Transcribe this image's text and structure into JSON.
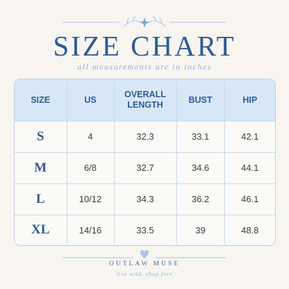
{
  "header": {
    "title": "SIZE CHART",
    "subtitle": "all measurements are in inches"
  },
  "table": {
    "columns": [
      "SIZE",
      "US",
      "OVERALL LENGTH",
      "BUST",
      "HIP"
    ],
    "rows": [
      [
        "S",
        "4",
        "32.3",
        "33.1",
        "42.1"
      ],
      [
        "M",
        "6/8",
        "32.7",
        "34.6",
        "44.1"
      ],
      [
        "L",
        "10/12",
        "34.3",
        "36.2",
        "46.1"
      ],
      [
        "XL",
        "14/16",
        "33.5",
        "39",
        "48.8"
      ]
    ]
  },
  "footer": {
    "brand": "OUTLAW MUSE",
    "tagline": "live wild. shop free"
  }
}
